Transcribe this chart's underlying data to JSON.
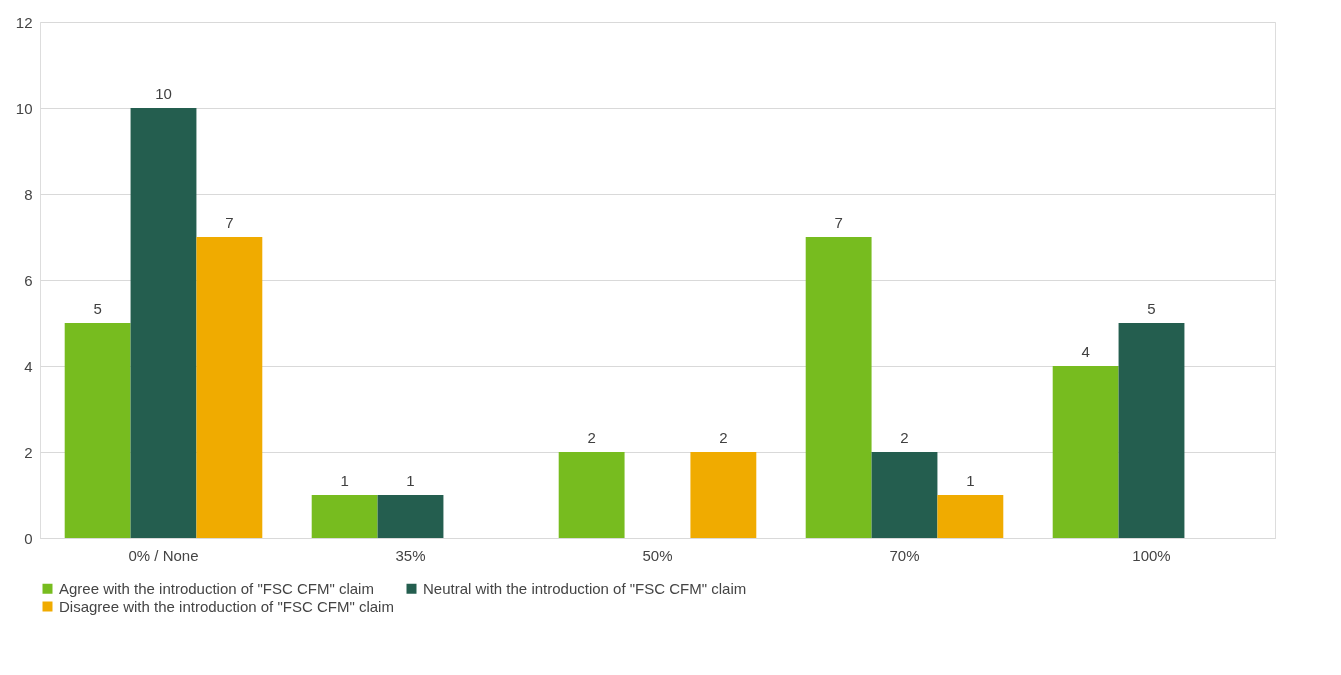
{
  "chart_data": {
    "type": "bar",
    "categories": [
      "0% / None",
      "35%",
      "50%",
      "70%",
      "100%"
    ],
    "series": [
      {
        "name": "Agree with the introduction of \"FSC CFM\" claim",
        "color": "#77bc1f",
        "values": [
          5,
          1,
          2,
          7,
          4
        ]
      },
      {
        "name": "Neutral with the introduction of \"FSC CFM\" claim",
        "color": "#245e4f",
        "values": [
          10,
          1,
          null,
          2,
          5
        ]
      },
      {
        "name": "Disagree with the introduction of \"FSC CFM\" claim",
        "color": "#f0ab00",
        "values": [
          7,
          null,
          2,
          1,
          null
        ]
      }
    ],
    "ylim": [
      0,
      12
    ],
    "yticks": [
      0,
      2,
      4,
      6,
      8,
      10,
      12
    ],
    "grid": "y",
    "legend": "bottom",
    "data_labels": true
  }
}
